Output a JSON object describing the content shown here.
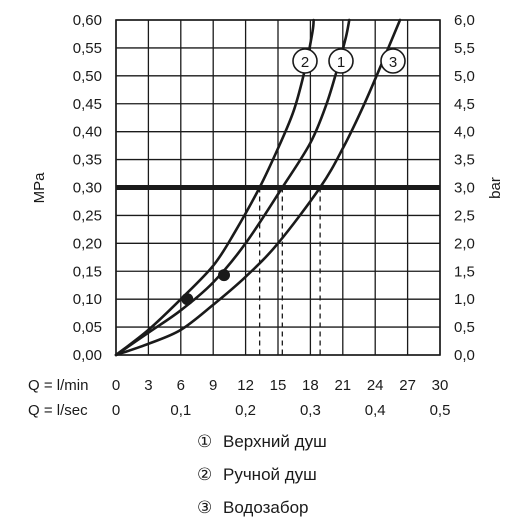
{
  "chart_data": {
    "type": "line",
    "ylabel_left": "MPa",
    "ylabel_right": "bar",
    "x_row_label_lpm": "Q = l/min",
    "x_row_label_lps": "Q = l/sec",
    "xlim": [
      0,
      30
    ],
    "ylim": [
      0,
      0.6
    ],
    "grid": true,
    "x_ticks_lpm": [
      "0",
      "3",
      "6",
      "9",
      "12",
      "15",
      "18",
      "21",
      "24",
      "27",
      "30"
    ],
    "x_ticks_lps": [
      {
        "x": 0,
        "label": "0"
      },
      {
        "x": 6,
        "label": "0,1"
      },
      {
        "x": 12,
        "label": "0,2"
      },
      {
        "x": 18,
        "label": "0,3"
      },
      {
        "x": 24,
        "label": "0,4"
      },
      {
        "x": 30,
        "label": "0,5"
      }
    ],
    "y_ticks_left": [
      "0,00",
      "0,05",
      "0,10",
      "0,15",
      "0,20",
      "0,25",
      "0,30",
      "0,35",
      "0,40",
      "0,45",
      "0,50",
      "0,55",
      "0,60"
    ],
    "y_ticks_right": [
      "0,0",
      "0,5",
      "1,0",
      "1,5",
      "2,0",
      "2,5",
      "3,0",
      "3,5",
      "4,0",
      "4,5",
      "5,0",
      "5,5",
      "6,0"
    ],
    "reference_line": {
      "y": 0.3
    },
    "series": [
      {
        "name": "1",
        "points": [
          [
            0,
            0
          ],
          [
            3,
            0.04
          ],
          [
            6,
            0.08
          ],
          [
            9,
            0.13
          ],
          [
            12,
            0.2
          ],
          [
            15.4,
            0.3
          ],
          [
            18,
            0.38
          ],
          [
            19.5,
            0.45
          ],
          [
            20.6,
            0.52
          ],
          [
            21.3,
            0.57
          ],
          [
            21.6,
            0.6
          ]
        ],
        "drop_x": 15.4
      },
      {
        "name": "2",
        "points": [
          [
            0,
            0
          ],
          [
            3,
            0.045
          ],
          [
            6,
            0.1
          ],
          [
            9,
            0.16
          ],
          [
            11,
            0.22
          ],
          [
            13.3,
            0.3
          ],
          [
            15,
            0.37
          ],
          [
            16.5,
            0.44
          ],
          [
            17.6,
            0.52
          ],
          [
            18.2,
            0.58
          ],
          [
            18.3,
            0.6
          ]
        ],
        "drop_x": 13.3
      },
      {
        "name": "3",
        "points": [
          [
            0,
            0
          ],
          [
            3,
            0.02
          ],
          [
            6,
            0.045
          ],
          [
            9,
            0.09
          ],
          [
            12,
            0.14
          ],
          [
            15,
            0.2
          ],
          [
            18.9,
            0.3
          ],
          [
            21,
            0.37
          ],
          [
            23,
            0.45
          ],
          [
            25,
            0.54
          ],
          [
            26.3,
            0.6
          ]
        ],
        "drop_x": 18.9
      }
    ],
    "markers": [
      [
        6.6,
        0.1
      ],
      [
        10,
        0.143
      ]
    ],
    "legend": [
      {
        "symbol": "①",
        "text": "Верхний душ"
      },
      {
        "symbol": "②",
        "text": "Ручной душ"
      },
      {
        "symbol": "③",
        "text": "Водозабор"
      }
    ],
    "colors": {
      "line": "#1a1a1a",
      "background": "#ffffff"
    }
  }
}
